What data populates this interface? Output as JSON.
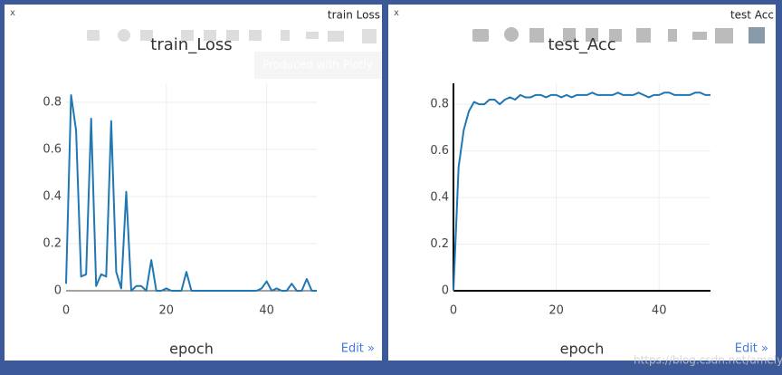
{
  "chart_data": [
    {
      "type": "line",
      "window_title": "train Loss",
      "close": "x",
      "title": "train_Loss",
      "xlabel": "epoch",
      "edit_link": "Edit »",
      "tooltip": "Produced with Plotly",
      "x": [
        0,
        1,
        2,
        3,
        4,
        5,
        6,
        7,
        8,
        9,
        10,
        11,
        12,
        13,
        14,
        15,
        16,
        17,
        18,
        19,
        20,
        21,
        22,
        23,
        24,
        25,
        26,
        27,
        28,
        29,
        30,
        31,
        32,
        33,
        34,
        35,
        36,
        37,
        38,
        39,
        40,
        41,
        42,
        43,
        44,
        45,
        46,
        47,
        48,
        49,
        50
      ],
      "values": [
        0.03,
        0.83,
        0.68,
        0.06,
        0.07,
        0.73,
        0.02,
        0.07,
        0.06,
        0.72,
        0.08,
        0.01,
        0.42,
        0.0,
        0.02,
        0.02,
        0.0,
        0.13,
        0.0,
        0.0,
        0.01,
        0.0,
        0.0,
        0.0,
        0.08,
        0.0,
        0.0,
        0.0,
        0.0,
        0.0,
        0.0,
        0.0,
        0.0,
        0.0,
        0.0,
        0.0,
        0.0,
        0.0,
        0.0,
        0.01,
        0.04,
        0.0,
        0.01,
        0.0,
        0.0,
        0.03,
        0.0,
        0.0,
        0.05,
        0.0,
        0.0
      ],
      "color": "#1f77b4",
      "xlim": [
        0,
        50
      ],
      "ylim": [
        0,
        0.88
      ],
      "xticks": [
        0,
        20,
        40
      ],
      "yticks": [
        0,
        0.2,
        0.4,
        0.6,
        0.8
      ],
      "grid": true,
      "axis_lines": false
    },
    {
      "type": "line",
      "window_title": "test Acc",
      "close": "x",
      "title": "test_Acc",
      "xlabel": "epoch",
      "edit_link": "Edit »",
      "x": [
        0,
        1,
        2,
        3,
        4,
        5,
        6,
        7,
        8,
        9,
        10,
        11,
        12,
        13,
        14,
        15,
        16,
        17,
        18,
        19,
        20,
        21,
        22,
        23,
        24,
        25,
        26,
        27,
        28,
        29,
        30,
        31,
        32,
        33,
        34,
        35,
        36,
        37,
        38,
        39,
        40,
        41,
        42,
        43,
        44,
        45,
        46,
        47,
        48,
        49,
        50
      ],
      "values": [
        0.0,
        0.53,
        0.69,
        0.77,
        0.81,
        0.8,
        0.8,
        0.82,
        0.82,
        0.8,
        0.82,
        0.83,
        0.82,
        0.84,
        0.83,
        0.83,
        0.84,
        0.84,
        0.83,
        0.84,
        0.84,
        0.83,
        0.84,
        0.83,
        0.84,
        0.84,
        0.84,
        0.85,
        0.84,
        0.84,
        0.84,
        0.84,
        0.85,
        0.84,
        0.84,
        0.84,
        0.85,
        0.84,
        0.83,
        0.84,
        0.84,
        0.85,
        0.85,
        0.84,
        0.84,
        0.84,
        0.84,
        0.85,
        0.85,
        0.84,
        0.84
      ],
      "color": "#1f77b4",
      "xlim": [
        0,
        50
      ],
      "ylim": [
        0,
        0.89
      ],
      "xticks": [
        0,
        20,
        40
      ],
      "yticks": [
        0,
        0.2,
        0.4,
        0.6,
        0.8
      ],
      "grid": true,
      "axis_lines": true
    }
  ],
  "watermark": "https://blog.csdn.net/amelylinux"
}
